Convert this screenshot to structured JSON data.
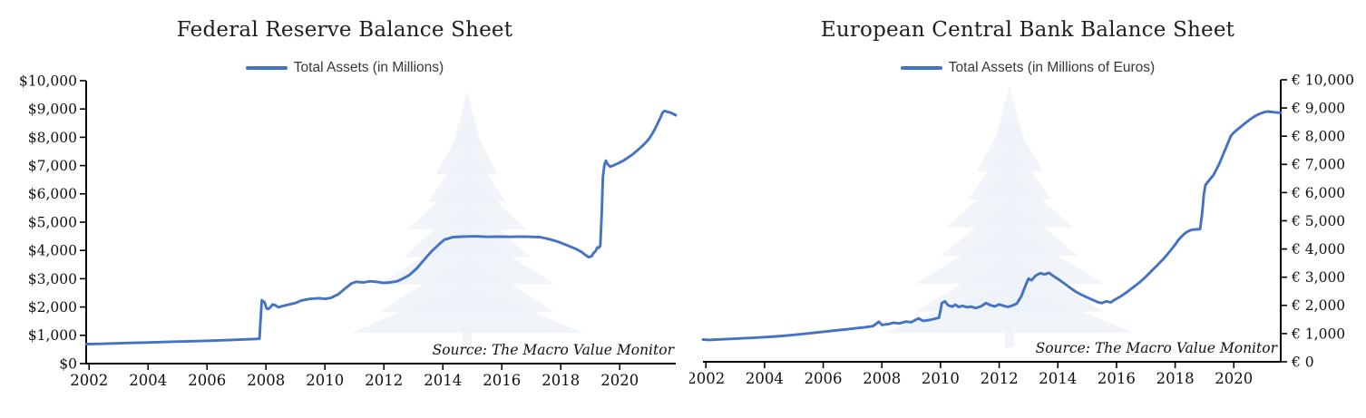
{
  "colors": {
    "series_line": "#4472C4",
    "title_text": "#1f1f1f",
    "axis_line": "#000000",
    "tick_label": "#111111",
    "legend_text": "#383838",
    "source_text": "#111111",
    "watermark": "#ecf1f8",
    "background": "#ffffff"
  },
  "chart_data": [
    {
      "type": "line",
      "title": "Federal Reserve Balance Sheet",
      "legend": [
        "Total Assets (in Millions)"
      ],
      "legend_position": "top",
      "source_note": "Source: The Macro Value Monitor",
      "watermark_icon": "pine-tree-watermark",
      "grid": false,
      "y_axis": {
        "side": "left",
        "min": 0,
        "max": 10000,
        "tick_step": 1000,
        "tick_labels": [
          "$0",
          "$1,000",
          "$2,000",
          "$3,000",
          "$4,000",
          "$5,000",
          "$6,000",
          "$7,000",
          "$8,000",
          "$9,000",
          "$10,000"
        ]
      },
      "x_axis": {
        "min": 2001.9,
        "max": 2021.9,
        "tick_values": [
          2002,
          2004,
          2006,
          2008,
          2010,
          2012,
          2014,
          2016,
          2018,
          2020
        ],
        "tick_labels": [
          "2002",
          "2004",
          "2006",
          "2008",
          "2010",
          "2012",
          "2014",
          "2016",
          "2018",
          "2020"
        ]
      },
      "series": [
        {
          "name": "Total Assets (in Millions)",
          "color": "#4472C4",
          "points": [
            [
              2001.9,
              690
            ],
            [
              2002.4,
              700
            ],
            [
              2002.9,
              715
            ],
            [
              2003.4,
              730
            ],
            [
              2003.9,
              745
            ],
            [
              2004.4,
              760
            ],
            [
              2004.9,
              775
            ],
            [
              2005.4,
              790
            ],
            [
              2005.9,
              805
            ],
            [
              2006.4,
              820
            ],
            [
              2006.9,
              840
            ],
            [
              2007.3,
              855
            ],
            [
              2007.6,
              868
            ],
            [
              2007.78,
              878
            ],
            [
              2007.82,
              1600
            ],
            [
              2007.86,
              2240
            ],
            [
              2007.95,
              2170
            ],
            [
              2008.02,
              1950
            ],
            [
              2008.08,
              1930
            ],
            [
              2008.15,
              1990
            ],
            [
              2008.22,
              2090
            ],
            [
              2008.32,
              2060
            ],
            [
              2008.42,
              1990
            ],
            [
              2008.58,
              2040
            ],
            [
              2008.78,
              2090
            ],
            [
              2009.0,
              2140
            ],
            [
              2009.2,
              2230
            ],
            [
              2009.5,
              2290
            ],
            [
              2009.8,
              2310
            ],
            [
              2010.0,
              2290
            ],
            [
              2010.2,
              2320
            ],
            [
              2010.45,
              2450
            ],
            [
              2010.7,
              2670
            ],
            [
              2010.9,
              2830
            ],
            [
              2011.05,
              2890
            ],
            [
              2011.3,
              2870
            ],
            [
              2011.55,
              2910
            ],
            [
              2011.8,
              2880
            ],
            [
              2012.0,
              2850
            ],
            [
              2012.2,
              2870
            ],
            [
              2012.45,
              2910
            ],
            [
              2012.6,
              2980
            ],
            [
              2012.85,
              3120
            ],
            [
              2013.1,
              3350
            ],
            [
              2013.35,
              3650
            ],
            [
              2013.6,
              3950
            ],
            [
              2013.85,
              4200
            ],
            [
              2014.05,
              4380
            ],
            [
              2014.35,
              4470
            ],
            [
              2014.7,
              4490
            ],
            [
              2015.1,
              4500
            ],
            [
              2015.5,
              4480
            ],
            [
              2015.9,
              4490
            ],
            [
              2016.3,
              4480
            ],
            [
              2016.7,
              4490
            ],
            [
              2017.0,
              4480
            ],
            [
              2017.3,
              4470
            ],
            [
              2017.6,
              4400
            ],
            [
              2017.9,
              4310
            ],
            [
              2018.2,
              4190
            ],
            [
              2018.5,
              4060
            ],
            [
              2018.7,
              3950
            ],
            [
              2018.85,
              3830
            ],
            [
              2018.95,
              3760
            ],
            [
              2019.05,
              3800
            ],
            [
              2019.12,
              3920
            ],
            [
              2019.18,
              3970
            ],
            [
              2019.24,
              4110
            ],
            [
              2019.29,
              4090
            ],
            [
              2019.34,
              4160
            ],
            [
              2019.39,
              5300
            ],
            [
              2019.43,
              6600
            ],
            [
              2019.48,
              7010
            ],
            [
              2019.53,
              7170
            ],
            [
              2019.6,
              7040
            ],
            [
              2019.68,
              6960
            ],
            [
              2019.8,
              7010
            ],
            [
              2019.95,
              7080
            ],
            [
              2020.1,
              7160
            ],
            [
              2020.25,
              7260
            ],
            [
              2020.4,
              7370
            ],
            [
              2020.55,
              7490
            ],
            [
              2020.7,
              7630
            ],
            [
              2020.85,
              7780
            ],
            [
              2021.0,
              7950
            ],
            [
              2021.1,
              8120
            ],
            [
              2021.2,
              8300
            ],
            [
              2021.3,
              8520
            ],
            [
              2021.38,
              8700
            ],
            [
              2021.45,
              8870
            ],
            [
              2021.52,
              8930
            ],
            [
              2021.62,
              8900
            ],
            [
              2021.75,
              8860
            ],
            [
              2021.9,
              8780
            ]
          ]
        }
      ]
    },
    {
      "type": "line",
      "title": "European Central Bank Balance Sheet",
      "legend": [
        "Total Assets (in Millions of Euros)"
      ],
      "legend_position": "top",
      "source_note": "Source: The Macro Value Monitor",
      "watermark_icon": "pine-tree-watermark",
      "grid": false,
      "y_axis": {
        "side": "right",
        "min": 0,
        "max": 10000,
        "tick_step": 1000,
        "tick_labels": [
          "€ 0",
          "€ 1,000",
          "€ 2,000",
          "€ 3,000",
          "€ 4,000",
          "€ 5,000",
          "€ 6,000",
          "€ 7,000",
          "€ 8,000",
          "€ 9,000",
          "€ 10,000"
        ]
      },
      "x_axis": {
        "min": 2001.9,
        "max": 2021.6,
        "tick_values": [
          2002,
          2004,
          2006,
          2008,
          2010,
          2012,
          2014,
          2016,
          2018,
          2020
        ],
        "tick_labels": [
          "2002",
          "2004",
          "2006",
          "2008",
          "2010",
          "2012",
          "2014",
          "2016",
          "2018",
          "2020"
        ]
      },
      "series": [
        {
          "name": "Total Assets (in Millions of Euros)",
          "color": "#4472C4",
          "points": [
            [
              2001.9,
              790
            ],
            [
              2002.1,
              775
            ],
            [
              2002.4,
              790
            ],
            [
              2002.8,
              810
            ],
            [
              2003.2,
              830
            ],
            [
              2003.6,
              850
            ],
            [
              2004.0,
              875
            ],
            [
              2004.4,
              900
            ],
            [
              2004.8,
              935
            ],
            [
              2005.2,
              975
            ],
            [
              2005.6,
              1020
            ],
            [
              2006.0,
              1065
            ],
            [
              2006.4,
              1110
            ],
            [
              2006.8,
              1150
            ],
            [
              2007.1,
              1185
            ],
            [
              2007.4,
              1220
            ],
            [
              2007.7,
              1265
            ],
            [
              2007.9,
              1420
            ],
            [
              2008.0,
              1310
            ],
            [
              2008.2,
              1330
            ],
            [
              2008.4,
              1385
            ],
            [
              2008.6,
              1360
            ],
            [
              2008.8,
              1425
            ],
            [
              2009.0,
              1405
            ],
            [
              2009.25,
              1540
            ],
            [
              2009.4,
              1450
            ],
            [
              2009.6,
              1475
            ],
            [
              2009.8,
              1525
            ],
            [
              2009.95,
              1565
            ],
            [
              2010.05,
              2090
            ],
            [
              2010.15,
              2140
            ],
            [
              2010.25,
              2010
            ],
            [
              2010.4,
              1955
            ],
            [
              2010.5,
              2025
            ],
            [
              2010.62,
              1945
            ],
            [
              2010.75,
              1985
            ],
            [
              2010.9,
              1935
            ],
            [
              2011.05,
              1955
            ],
            [
              2011.2,
              1905
            ],
            [
              2011.4,
              1975
            ],
            [
              2011.55,
              2085
            ],
            [
              2011.7,
              2005
            ],
            [
              2011.85,
              1965
            ],
            [
              2012.0,
              2035
            ],
            [
              2012.15,
              1985
            ],
            [
              2012.3,
              1945
            ],
            [
              2012.45,
              1995
            ],
            [
              2012.6,
              2065
            ],
            [
              2012.75,
              2310
            ],
            [
              2012.9,
              2710
            ],
            [
              2013.0,
              2950
            ],
            [
              2013.1,
              2890
            ],
            [
              2013.25,
              3060
            ],
            [
              2013.4,
              3140
            ],
            [
              2013.55,
              3100
            ],
            [
              2013.7,
              3155
            ],
            [
              2013.85,
              3040
            ],
            [
              2014.0,
              2940
            ],
            [
              2014.2,
              2790
            ],
            [
              2014.4,
              2640
            ],
            [
              2014.6,
              2490
            ],
            [
              2014.8,
              2380
            ],
            [
              2015.0,
              2280
            ],
            [
              2015.2,
              2190
            ],
            [
              2015.35,
              2120
            ],
            [
              2015.5,
              2080
            ],
            [
              2015.65,
              2145
            ],
            [
              2015.8,
              2105
            ],
            [
              2015.95,
              2205
            ],
            [
              2016.15,
              2325
            ],
            [
              2016.35,
              2465
            ],
            [
              2016.55,
              2625
            ],
            [
              2016.8,
              2825
            ],
            [
              2017.0,
              3015
            ],
            [
              2017.2,
              3225
            ],
            [
              2017.45,
              3485
            ],
            [
              2017.65,
              3705
            ],
            [
              2017.85,
              3955
            ],
            [
              2018.0,
              4155
            ],
            [
              2018.1,
              4305
            ],
            [
              2018.2,
              4425
            ],
            [
              2018.3,
              4525
            ],
            [
              2018.4,
              4605
            ],
            [
              2018.5,
              4655
            ],
            [
              2018.6,
              4685
            ],
            [
              2018.72,
              4695
            ],
            [
              2018.85,
              4705
            ],
            [
              2018.92,
              5250
            ],
            [
              2018.98,
              5950
            ],
            [
              2019.03,
              6260
            ],
            [
              2019.1,
              6360
            ],
            [
              2019.2,
              6490
            ],
            [
              2019.3,
              6610
            ],
            [
              2019.4,
              6810
            ],
            [
              2019.5,
              7010
            ],
            [
              2019.6,
              7260
            ],
            [
              2019.7,
              7510
            ],
            [
              2019.8,
              7760
            ],
            [
              2019.9,
              8010
            ],
            [
              2020.0,
              8130
            ],
            [
              2020.15,
              8260
            ],
            [
              2020.3,
              8390
            ],
            [
              2020.45,
              8510
            ],
            [
              2020.6,
              8630
            ],
            [
              2020.75,
              8730
            ],
            [
              2020.9,
              8800
            ],
            [
              2021.05,
              8855
            ],
            [
              2021.15,
              8875
            ],
            [
              2021.3,
              8860
            ],
            [
              2021.45,
              8840
            ],
            [
              2021.6,
              8830
            ]
          ]
        }
      ]
    }
  ]
}
